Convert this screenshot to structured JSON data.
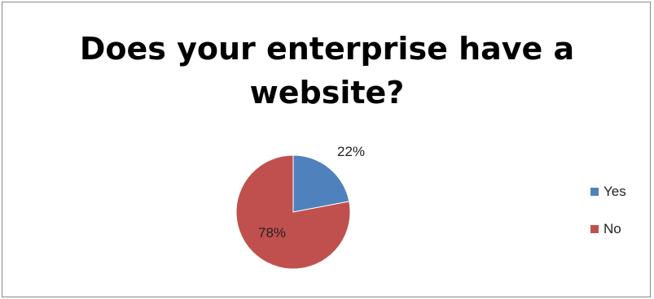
{
  "chart_data": {
    "type": "pie",
    "title": "Does your enterprise have a website?",
    "title_lines": [
      "Does your enterprise have a",
      "website?"
    ],
    "slices": [
      {
        "name": "Yes",
        "value": 22,
        "label": "22%",
        "color": "#4f81bd"
      },
      {
        "name": "No",
        "value": 78,
        "label": "78%",
        "color": "#c0504d"
      }
    ],
    "legend_position": "right"
  }
}
